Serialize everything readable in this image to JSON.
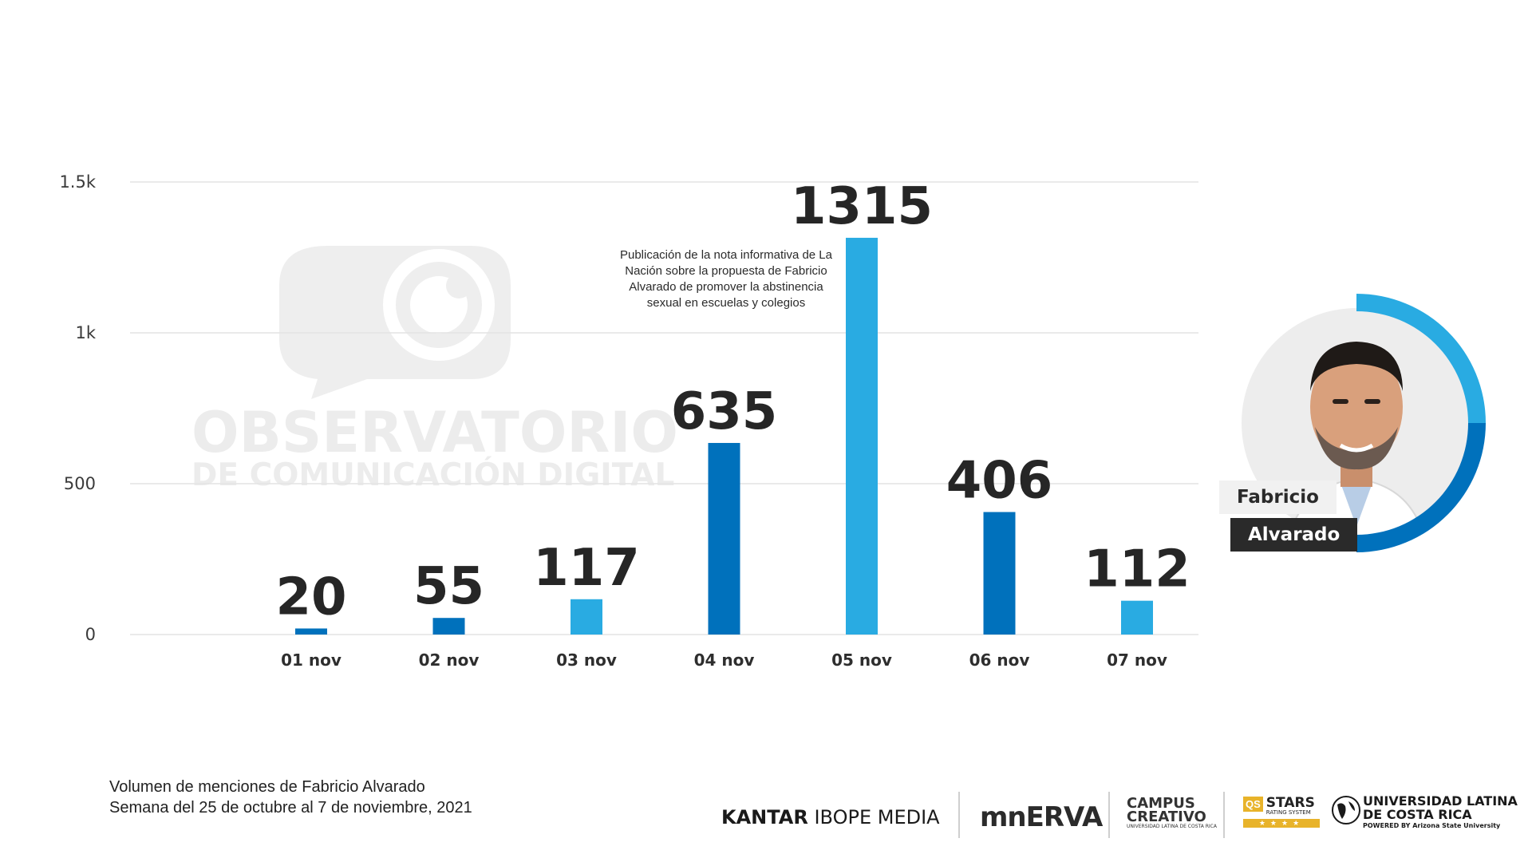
{
  "chart_data": {
    "type": "bar",
    "categories": [
      "01 nov",
      "02 nov",
      "03 nov",
      "04 nov",
      "05 nov",
      "06 nov",
      "07 nov"
    ],
    "values": [
      20,
      55,
      117,
      635,
      1315,
      406,
      112
    ],
    "data_labels": [
      "20",
      "55",
      "117",
      "635",
      "1315",
      "406",
      "112"
    ],
    "bar_colors": [
      "#0071bc",
      "#0071bc",
      "#29abe2",
      "#0071bc",
      "#29abe2",
      "#0071bc",
      "#29abe2"
    ],
    "ylim": [
      0,
      1500
    ],
    "yticks": [
      0,
      500,
      1000,
      1500
    ],
    "ytick_labels": [
      "0",
      "500",
      "1k",
      "1.5k"
    ],
    "grid": true,
    "legend": "none",
    "annotation": "Publicación de la nota informativa de La Nación sobre la propuesta de Fabricio Alvarado de promover la abstinencia sexual en escuelas y colegios",
    "annotation_category": "05 nov"
  },
  "watermark": {
    "line1": "OBSERVATORIO",
    "line2": "DE COMUNICACIÓN DIGITAL"
  },
  "caption": {
    "line1": "Volumen de menciones de Fabricio Alvarado",
    "line2": "Semana del 25 de octubre al 7 de noviembre, 2021"
  },
  "profile": {
    "first_name": "Fabricio",
    "last_name": "Alvarado",
    "ring_colors": [
      "#29abe2",
      "#0071bc"
    ]
  },
  "logos": {
    "kantar_bold": "KANTAR",
    "kantar_rest": "IBOPE MEDIA",
    "minerva": "mnERVA",
    "campus_line1": "CAMPUS",
    "campus_line2": "CREATIVO",
    "campus_small": "UNIVERSIDAD LATINA DE COSTA RICA",
    "qs_box": "QS",
    "qs_stars": "STARS",
    "qs_rating": "RATING SYSTEM",
    "qs_star_row": "★★★★",
    "ulatina_line1": "UNIVERSIDAD LATINA",
    "ulatina_line2": "DE COSTA RICA",
    "ulatina_powered": "POWERED BY Arizona State University"
  }
}
